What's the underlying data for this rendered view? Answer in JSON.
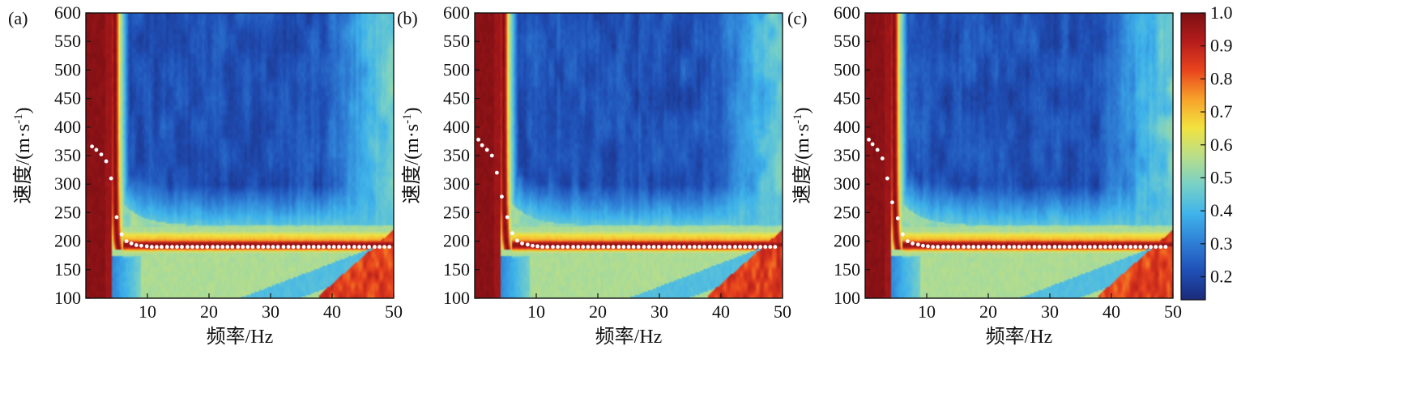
{
  "figure": {
    "colors": {
      "colormap": [
        "#1b2a7a",
        "#1f4fb5",
        "#2f7fd6",
        "#3fb3ea",
        "#77d0c8",
        "#b8de8a",
        "#f2e23f",
        "#f7a12a",
        "#e8441d",
        "#b51c1c",
        "#7c0f14"
      ],
      "picks": "#ffffff"
    }
  },
  "colorbar": {
    "ticks": [
      "1.0",
      "0.9",
      "0.8",
      "0.7",
      "0.6",
      "0.5",
      "0.4",
      "0.3",
      "0.2"
    ],
    "range": [
      0.13,
      1.0
    ]
  },
  "chart_data": [
    {
      "type": "heatmap",
      "panel_label": "(a)",
      "xlabel": "频率/Hz",
      "ylabel": "速度/(m·s",
      "ylabel_sup": "-1",
      "ylabel_end": ")",
      "xlim": [
        0,
        50
      ],
      "ylim": [
        100,
        600
      ],
      "xticks": [
        "10",
        "20",
        "30",
        "40",
        "50"
      ],
      "yticks": [
        "100",
        "150",
        "200",
        "250",
        "300",
        "350",
        "400",
        "450",
        "500",
        "550",
        "600"
      ],
      "dispersion_picks": {
        "x": [
          1.0,
          1.7,
          2.5,
          3.3,
          4.1,
          5.0,
          5.8,
          6.6,
          7.4,
          8.2,
          9.0,
          9.9,
          10.7,
          11.5,
          12.3,
          13.2,
          14.0,
          14.8,
          15.6,
          16.5,
          17.3,
          18.1,
          18.9,
          19.7,
          20.6,
          21.4,
          22.2,
          23.0,
          23.8,
          24.7,
          25.5,
          26.3,
          27.1,
          28.0,
          28.8,
          29.6,
          30.4,
          31.2,
          32.1,
          32.9,
          33.7,
          34.5,
          35.4,
          36.2,
          37.0,
          37.8,
          38.6,
          39.5,
          40.3,
          41.1,
          41.9,
          42.7,
          43.6,
          44.4,
          45.2,
          46.0,
          46.9,
          47.7,
          48.5,
          49.3
        ],
        "y": [
          366,
          360,
          352,
          340,
          310,
          242,
          212,
          200,
          196,
          193,
          192,
          191,
          190,
          190,
          190,
          190,
          190,
          190,
          190,
          190,
          190,
          190,
          190,
          190,
          190,
          190,
          190,
          190,
          190,
          190,
          190,
          190,
          190,
          190,
          190,
          190,
          190,
          190,
          190,
          190,
          190,
          190,
          190,
          190,
          190,
          190,
          190,
          190,
          190,
          190,
          190,
          190,
          190,
          190,
          190,
          190,
          190,
          190,
          190,
          190
        ]
      }
    },
    {
      "type": "heatmap",
      "panel_label": "(b)",
      "xlabel": "频率/Hz",
      "ylabel": "速度/(m·s",
      "ylabel_sup": "-1",
      "ylabel_end": ")",
      "xlim": [
        0,
        50
      ],
      "ylim": [
        100,
        600
      ],
      "xticks": [
        "10",
        "20",
        "30",
        "40",
        "50"
      ],
      "yticks": [
        "100",
        "150",
        "200",
        "250",
        "300",
        "350",
        "400",
        "450",
        "500",
        "550",
        "600"
      ],
      "dispersion_picks": {
        "x": [
          0.6,
          1.2,
          2.0,
          2.8,
          3.6,
          4.4,
          5.3,
          6.1,
          6.9,
          7.7,
          8.6,
          9.4,
          10.2,
          11.0,
          11.8,
          12.7,
          13.5,
          14.3,
          15.1,
          16.0,
          16.8,
          17.6,
          18.4,
          19.2,
          20.1,
          20.9,
          21.7,
          22.5,
          23.4,
          24.2,
          25.0,
          25.8,
          26.6,
          27.5,
          28.3,
          29.1,
          29.9,
          30.8,
          31.6,
          32.4,
          33.2,
          34.0,
          34.9,
          35.7,
          36.5,
          37.3,
          38.2,
          39.0,
          39.8,
          40.6,
          41.4,
          42.3,
          43.1,
          43.9,
          44.7,
          45.6,
          46.4,
          47.2,
          48.0,
          48.8
        ],
        "y": [
          378,
          368,
          360,
          350,
          320,
          278,
          242,
          214,
          201,
          196,
          194,
          192,
          191,
          190,
          190,
          190,
          190,
          190,
          190,
          190,
          190,
          190,
          190,
          190,
          190,
          190,
          190,
          190,
          190,
          190,
          190,
          190,
          190,
          190,
          190,
          190,
          190,
          190,
          190,
          190,
          190,
          190,
          190,
          190,
          190,
          190,
          190,
          190,
          190,
          190,
          190,
          190,
          190,
          190,
          190,
          190,
          190,
          190,
          190,
          190
        ]
      }
    },
    {
      "type": "heatmap",
      "panel_label": "(c)",
      "xlabel": "频率/Hz",
      "ylabel": "速度/(m·s",
      "ylabel_sup": "-1",
      "ylabel_end": ")",
      "xlim": [
        0,
        50
      ],
      "ylim": [
        100,
        600
      ],
      "xticks": [
        "10",
        "20",
        "30",
        "40",
        "50"
      ],
      "yticks": [
        "100",
        "150",
        "200",
        "250",
        "300",
        "350",
        "400",
        "450",
        "500",
        "550",
        "600"
      ],
      "dispersion_picks": {
        "x": [
          0.6,
          1.2,
          2.0,
          2.8,
          3.6,
          4.4,
          5.3,
          6.1,
          6.9,
          7.7,
          8.6,
          9.4,
          10.2,
          11.0,
          11.8,
          12.7,
          13.5,
          14.3,
          15.1,
          16.0,
          16.8,
          17.6,
          18.4,
          19.2,
          20.1,
          20.9,
          21.7,
          22.5,
          23.4,
          24.2,
          25.0,
          25.8,
          26.6,
          27.5,
          28.3,
          29.1,
          29.9,
          30.8,
          31.6,
          32.4,
          33.2,
          34.0,
          34.9,
          35.7,
          36.5,
          37.3,
          38.2,
          39.0,
          39.8,
          40.6,
          41.4,
          42.3,
          43.1,
          43.9,
          44.7,
          45.6,
          46.4,
          47.2,
          48.0,
          48.8
        ],
        "y": [
          378,
          370,
          360,
          345,
          310,
          268,
          240,
          212,
          200,
          196,
          194,
          192,
          191,
          190,
          190,
          190,
          190,
          190,
          190,
          190,
          190,
          190,
          190,
          190,
          190,
          190,
          190,
          190,
          190,
          190,
          190,
          190,
          190,
          190,
          190,
          190,
          190,
          190,
          190,
          190,
          190,
          190,
          190,
          190,
          190,
          190,
          190,
          190,
          190,
          190,
          190,
          190,
          190,
          190,
          190,
          190,
          190,
          190,
          190,
          190
        ]
      }
    }
  ]
}
